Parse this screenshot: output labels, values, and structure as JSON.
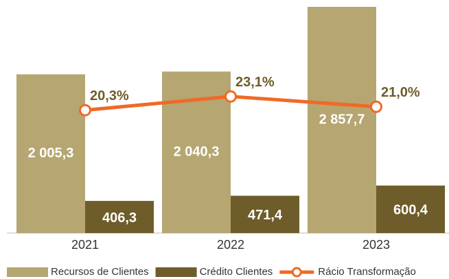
{
  "chart_data": {
    "type": "bar",
    "categories": [
      "2021",
      "2022",
      "2023"
    ],
    "series": [
      {
        "name": "Recursos de Clientes",
        "color": "#b5a672",
        "values": [
          2005.3,
          2040.3,
          2857.7
        ],
        "value_labels": [
          "2 005,3",
          "2 040,3",
          "2 857,7"
        ]
      },
      {
        "name": "Crédito Clientes",
        "color": "#6e5c2a",
        "values": [
          406.3,
          471.4,
          600.4
        ],
        "value_labels": [
          "406,3",
          "471,4",
          "600,4"
        ]
      },
      {
        "name": "Rácio Transformação",
        "type": "line",
        "axis": "y2",
        "color": "#f06a25",
        "values": [
          20.3,
          23.1,
          21.0
        ],
        "value_labels": [
          "20,3%",
          "23,1%",
          "21,0%"
        ]
      }
    ],
    "ylim": [
      0,
      2857.7
    ],
    "y2lim": [
      -4.8,
      41.4
    ],
    "legend": "bottom"
  }
}
